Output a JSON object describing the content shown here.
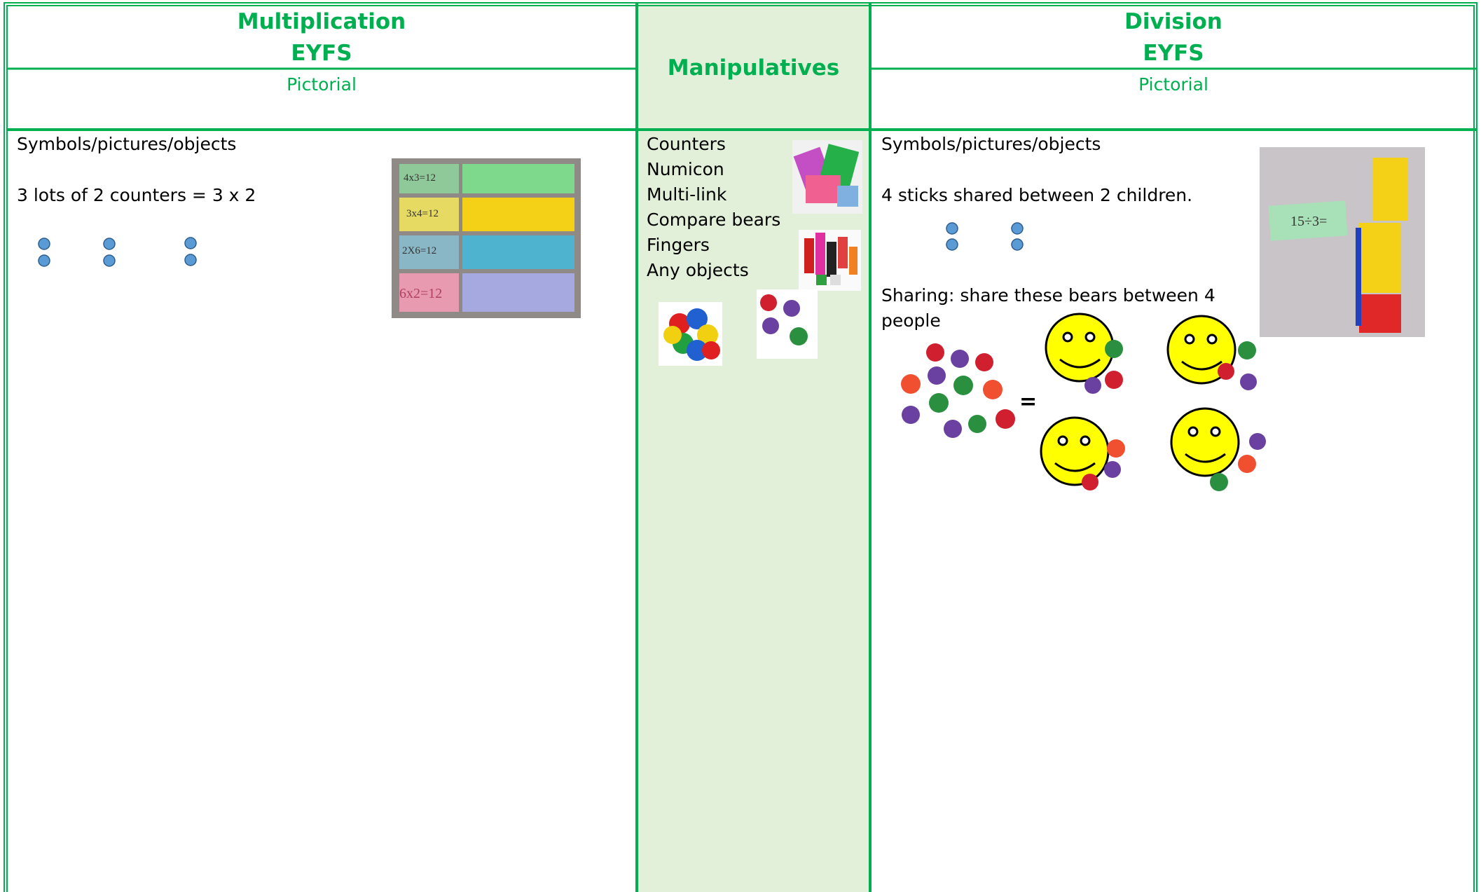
{
  "table": {
    "headers": [
      {
        "title": "Multiplication",
        "subtitle": "EYFS",
        "stage": "Pictorial"
      },
      {
        "title": "Manipulatives"
      },
      {
        "title": "Division",
        "subtitle": "EYFS",
        "stage": "Pictorial"
      }
    ],
    "multiplication": {
      "heading": "Symbols/pictures/objects",
      "example": "3 lots of 2 counters  = 3 x 2",
      "photo_cards": [
        "4x3=12",
        "3x4=12",
        "2X6=12",
        "6x2=12"
      ]
    },
    "manipulatives": [
      "Counters",
      "Numicon",
      "Multi-link",
      "Compare bears",
      "Fingers",
      "Any objects"
    ],
    "division": {
      "heading": "Symbols/pictures/objects",
      "example": "4 sticks shared between 2 children.",
      "sharing": "Sharing:   share these bears between 4 people",
      "equals": "=",
      "photo_card": "15÷3="
    }
  }
}
